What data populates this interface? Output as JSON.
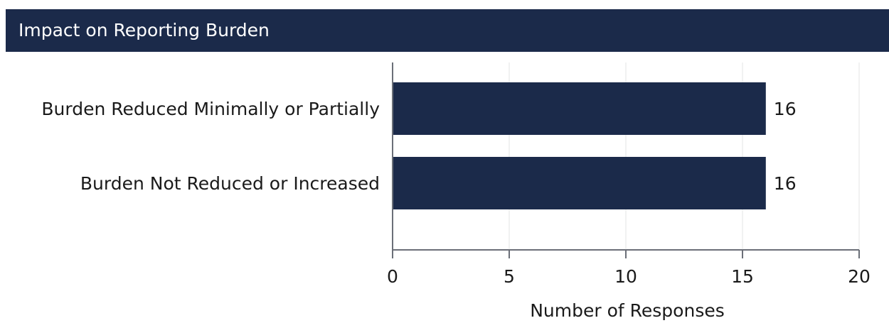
{
  "header": {
    "title": "Impact on Reporting Burden"
  },
  "colors": {
    "header_bg": "#1b2a4a",
    "bar": "#1b2a4a",
    "axis": "#6b6f78",
    "grid": "#e3e4e6",
    "text": "#1a1a1a"
  },
  "chart_data": {
    "type": "bar",
    "orientation": "horizontal",
    "categories": [
      "Burden Reduced Minimally or Partially",
      "Burden Not Reduced or Increased"
    ],
    "values": [
      16,
      16
    ],
    "data_labels": [
      "16",
      "16"
    ],
    "xlabel": "Number of Responses",
    "ylabel": "",
    "xlim": [
      0,
      20
    ],
    "xticks": [
      0,
      5,
      10,
      15,
      20
    ],
    "grid": true,
    "legend": "none"
  }
}
